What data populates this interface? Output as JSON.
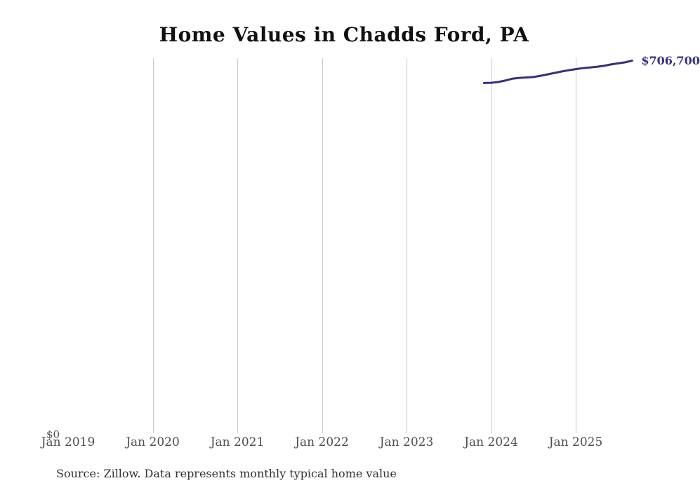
{
  "chart": {
    "title": "Home Values in Chadds Ford, PA",
    "source_note": "Source: Zillow. Data represents monthly typical home value",
    "y_zero_label": "$0",
    "end_label": "$706,700"
  },
  "chart_data": {
    "type": "line",
    "title": "Home Values in Chadds Ford, PA",
    "xlabel": "",
    "ylabel": "",
    "ylim": [
      0,
      710000
    ],
    "grid": "vertical-gridlines-only",
    "legend": "none",
    "line_color": "#37307d",
    "gridline_color": "#cccccc",
    "tick_label_color": "#4d4d4d",
    "x_ticks": [
      {
        "label": "Jan 2019",
        "gridline": false
      },
      {
        "label": "Jan 2020",
        "gridline": true
      },
      {
        "label": "Jan 2021",
        "gridline": true
      },
      {
        "label": "Jan 2022",
        "gridline": true
      },
      {
        "label": "Jan 2023",
        "gridline": true
      },
      {
        "label": "Jan 2024",
        "gridline": true
      },
      {
        "label": "Jan 2025",
        "gridline": true
      }
    ],
    "x": [
      "Dec 2023",
      "Jan 2024",
      "Feb 2024",
      "Mar 2024",
      "Apr 2024",
      "May 2024",
      "Jun 2024",
      "Jul 2024",
      "Aug 2024",
      "Sep 2024",
      "Oct 2024",
      "Nov 2024",
      "Dec 2024",
      "Jan 2025",
      "Feb 2025",
      "Mar 2025",
      "Apr 2025",
      "May 2025",
      "Jun 2025",
      "Jul 2025",
      "Aug 2025",
      "Sep 2025"
    ],
    "values": [
      663900,
      664400,
      665800,
      668700,
      672100,
      673800,
      674500,
      675400,
      677800,
      680500,
      683200,
      685900,
      688300,
      690500,
      692300,
      693600,
      695000,
      696800,
      699500,
      701500,
      703500,
      706700
    ],
    "end_annotation": "$706,700"
  }
}
